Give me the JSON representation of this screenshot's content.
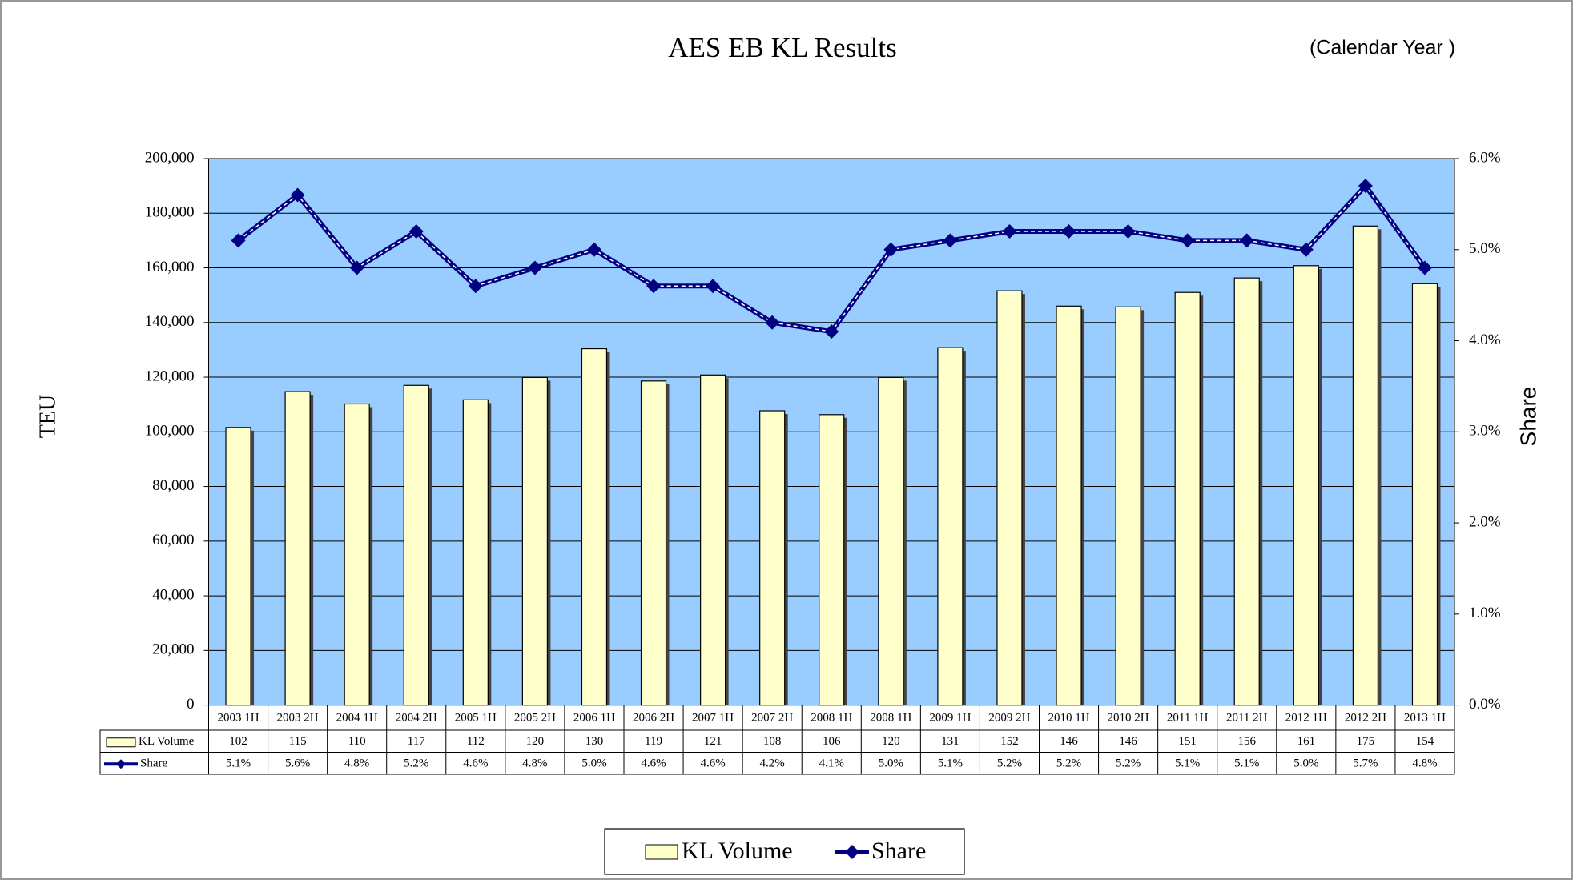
{
  "chart_data": {
    "type": "bar-line",
    "title": "AES EB KL Results",
    "annotation": "(Calendar Year )",
    "y_label": "TEU",
    "y2_label": "Share",
    "categories": [
      "2003 1H",
      "2003 2H",
      "2004 1H",
      "2004 2H",
      "2005 1H",
      "2005 2H",
      "2006 1H",
      "2006 2H",
      "2007 1H",
      "2007 2H",
      "2008 1H",
      "2008 1H",
      "2009 1H",
      "2009 2H",
      "2010 1H",
      "2010 2H",
      "2011 1H",
      "2011 2H",
      "2012 1H",
      "2012 2H",
      "2013 1H"
    ],
    "series": [
      {
        "name": "KL Volume",
        "type": "bar",
        "color": "#ffffcc",
        "values": [
          101600,
          114700,
          110200,
          117000,
          111700,
          119900,
          130400,
          118600,
          120800,
          107700,
          106300,
          119900,
          130800,
          151600,
          146000,
          145700,
          151000,
          156300,
          160800,
          175300,
          154200
        ],
        "value_labels": [
          "102",
          "115",
          "110",
          "117",
          "112",
          "120",
          "130",
          "119",
          "121",
          "108",
          "106",
          "120",
          "131",
          "152",
          "146",
          "146",
          "151",
          "156",
          "161",
          "175",
          "154"
        ]
      },
      {
        "name": "Share",
        "type": "line",
        "axis": "y2",
        "color": "#000080",
        "values": [
          5.1,
          5.6,
          4.8,
          5.2,
          4.6,
          4.8,
          5.0,
          4.6,
          4.6,
          4.2,
          4.1,
          5.0,
          5.1,
          5.2,
          5.2,
          5.2,
          5.1,
          5.1,
          5.0,
          5.7,
          4.8
        ],
        "value_labels": [
          "5.1%",
          "5.6%",
          "4.8%",
          "5.2%",
          "4.6%",
          "4.8%",
          "5.0%",
          "4.6%",
          "4.6%",
          "4.2%",
          "4.1%",
          "5.0%",
          "5.1%",
          "5.2%",
          "5.2%",
          "5.2%",
          "5.1%",
          "5.1%",
          "5.0%",
          "5.7%",
          "4.8%"
        ]
      }
    ],
    "ylim": [
      0,
      200000
    ],
    "yticks": [
      0,
      {
        "value": 20000,
        "label": "20,000"
      },
      {
        "value": 40000,
        "label": "40,000"
      },
      {
        "value": 60000,
        "label": "60,000"
      },
      {
        "value": 80000,
        "label": "80,000"
      },
      {
        "value": 100000,
        "label": "100,000"
      },
      {
        "value": 120000,
        "label": "120,000"
      },
      {
        "value": 140000,
        "label": "140,000"
      },
      {
        "value": 160000,
        "label": "160,000"
      },
      {
        "value": 180000,
        "label": "180,000"
      },
      {
        "value": 200000,
        "label": "200,000"
      }
    ],
    "y2lim": [
      0,
      6
    ],
    "y2ticks": [
      {
        "value": 0,
        "label": "0.0%"
      },
      {
        "value": 1,
        "label": "1.0%"
      },
      {
        "value": 2,
        "label": "2.0%"
      },
      {
        "value": 3,
        "label": "3.0%"
      },
      {
        "value": 4,
        "label": "4.0%"
      },
      {
        "value": 5,
        "label": "5.0%"
      },
      {
        "value": 6,
        "label": "6.0%"
      }
    ],
    "grid": true,
    "plot_background": "#99ccff",
    "legend": "bottom"
  }
}
